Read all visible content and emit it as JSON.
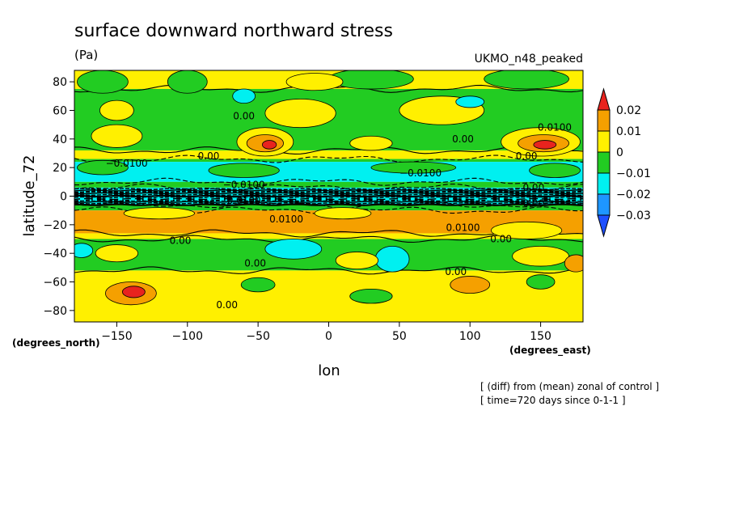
{
  "header": {
    "title": "surface downward northward stress",
    "units": "(Pa)",
    "model": "UKMO_n48_peaked"
  },
  "footer": {
    "note1": "[ (diff) from (mean) zonal of control ]",
    "note2": "[ time=720 days since 0-1-1 ]"
  },
  "chart_data": {
    "type": "heatmap",
    "xlabel": "lon",
    "ylabel": "latitude_72",
    "x_units": "(degrees_east)",
    "y_units": "(degrees_north)",
    "xlim": [
      -180,
      180
    ],
    "ylim": [
      -88,
      88
    ],
    "x_ticks": [
      -150,
      -100,
      -50,
      0,
      50,
      100,
      150
    ],
    "y_ticks": [
      80,
      60,
      40,
      20,
      0,
      -20,
      -40,
      -60,
      -80
    ],
    "colorbar": {
      "labels": [
        "0.02",
        "0.01",
        "0",
        "−0.01",
        "−0.02",
        "−0.03"
      ],
      "bands": [
        {
          "from": 0.02,
          "to": 0.03,
          "color": "#e8231e"
        },
        {
          "from": 0.01,
          "to": 0.02,
          "color": "#f5a000"
        },
        {
          "from": 0.0,
          "to": 0.01,
          "color": "#fff000"
        },
        {
          "from": -0.01,
          "to": 0.0,
          "color": "#22cc22"
        },
        {
          "from": -0.02,
          "to": -0.01,
          "color": "#00f0f0"
        },
        {
          "from": -0.03,
          "to": -0.02,
          "color": "#1e96ff"
        },
        {
          "from": -0.04,
          "to": -0.03,
          "color": "#1e50ff"
        }
      ]
    },
    "zonal_bands": [
      {
        "lat": [
          75,
          88
        ],
        "color": "#fff000"
      },
      {
        "lat": [
          32,
          75
        ],
        "color": "#22cc22"
      },
      {
        "lat": [
          26,
          32
        ],
        "color": "#fff000"
      },
      {
        "lat": [
          24,
          26
        ],
        "color": "#22cc22"
      },
      {
        "lat": [
          10,
          24
        ],
        "color": "#00f0f0"
      },
      {
        "lat": [
          6,
          10
        ],
        "color": "#22cc22"
      },
      {
        "lat": [
          -6,
          6
        ],
        "color": "#00f0f0"
      },
      {
        "lat": [
          -10,
          -6
        ],
        "color": "#22cc22"
      },
      {
        "lat": [
          -26,
          -10
        ],
        "color": "#f5a000"
      },
      {
        "lat": [
          -30,
          -26
        ],
        "color": "#fff000"
      },
      {
        "lat": [
          -52,
          -30
        ],
        "color": "#22cc22"
      },
      {
        "lat": [
          -88,
          -52
        ],
        "color": "#fff000"
      }
    ],
    "blobs": [
      {
        "lon": -160,
        "lat": 80,
        "rlon": 18,
        "rlat": 8,
        "color": "#22cc22"
      },
      {
        "lon": -100,
        "lat": 80,
        "rlon": 14,
        "rlat": 8,
        "color": "#22cc22"
      },
      {
        "lon": 30,
        "lat": 82,
        "rlon": 30,
        "rlat": 7,
        "color": "#22cc22"
      },
      {
        "lon": 140,
        "lat": 82,
        "rlon": 30,
        "rlat": 7,
        "color": "#22cc22"
      },
      {
        "lon": -10,
        "lat": 80,
        "rlon": 20,
        "rlat": 6,
        "color": "#fff000"
      },
      {
        "lon": -20,
        "lat": 58,
        "rlon": 25,
        "rlat": 10,
        "color": "#fff000"
      },
      {
        "lon": 80,
        "lat": 60,
        "rlon": 30,
        "rlat": 10,
        "color": "#fff000"
      },
      {
        "lon": -150,
        "lat": 60,
        "rlon": 12,
        "rlat": 7,
        "color": "#fff000"
      },
      {
        "lon": -150,
        "lat": 42,
        "rlon": 18,
        "rlat": 8,
        "color": "#fff000"
      },
      {
        "lon": -45,
        "lat": 38,
        "rlon": 20,
        "rlat": 10,
        "color": "#fff000"
      },
      {
        "lon": -45,
        "lat": 37,
        "rlon": 13,
        "rlat": 6,
        "color": "#f5a000"
      },
      {
        "lon": -42,
        "lat": 36,
        "rlon": 5,
        "rlat": 3,
        "color": "#e8231e"
      },
      {
        "lon": 30,
        "lat": 37,
        "rlon": 15,
        "rlat": 5,
        "color": "#fff000"
      },
      {
        "lon": 150,
        "lat": 38,
        "rlon": 28,
        "rlat": 10,
        "color": "#fff000"
      },
      {
        "lon": 152,
        "lat": 37,
        "rlon": 18,
        "rlat": 6,
        "color": "#f5a000"
      },
      {
        "lon": 153,
        "lat": 36,
        "rlon": 8,
        "rlat": 3,
        "color": "#e8231e"
      },
      {
        "lon": -60,
        "lat": 70,
        "rlon": 8,
        "rlat": 5,
        "color": "#00f0f0"
      },
      {
        "lon": 100,
        "lat": 66,
        "rlon": 10,
        "rlat": 4,
        "color": "#00f0f0"
      },
      {
        "lon": -160,
        "lat": 20,
        "rlon": 18,
        "rlat": 5,
        "color": "#22cc22"
      },
      {
        "lon": -60,
        "lat": 18,
        "rlon": 25,
        "rlat": 5,
        "color": "#22cc22"
      },
      {
        "lon": 60,
        "lat": 20,
        "rlon": 30,
        "rlat": 4,
        "color": "#22cc22"
      },
      {
        "lon": 160,
        "lat": 18,
        "rlon": 18,
        "rlat": 5,
        "color": "#22cc22"
      },
      {
        "lon": -120,
        "lat": -12,
        "rlon": 25,
        "rlat": 4,
        "color": "#fff000"
      },
      {
        "lon": 10,
        "lat": -12,
        "rlon": 20,
        "rlat": 4,
        "color": "#fff000"
      },
      {
        "lon": 140,
        "lat": -24,
        "rlon": 25,
        "rlat": 6,
        "color": "#fff000"
      },
      {
        "lon": -25,
        "lat": -37,
        "rlon": 20,
        "rlat": 7,
        "color": "#00f0f0"
      },
      {
        "lon": 45,
        "lat": -44,
        "rlon": 12,
        "rlat": 9,
        "color": "#00f0f0"
      },
      {
        "lon": -175,
        "lat": -38,
        "rlon": 8,
        "rlat": 5,
        "color": "#00f0f0"
      },
      {
        "lon": -150,
        "lat": -40,
        "rlon": 15,
        "rlat": 6,
        "color": "#fff000"
      },
      {
        "lon": 20,
        "lat": -45,
        "rlon": 15,
        "rlat": 6,
        "color": "#fff000"
      },
      {
        "lon": 150,
        "lat": -42,
        "rlon": 20,
        "rlat": 7,
        "color": "#fff000"
      },
      {
        "lon": -140,
        "lat": -68,
        "rlon": 18,
        "rlat": 8,
        "color": "#f5a000"
      },
      {
        "lon": -138,
        "lat": -67,
        "rlon": 8,
        "rlat": 4,
        "color": "#e8231e"
      },
      {
        "lon": 100,
        "lat": -62,
        "rlon": 14,
        "rlat": 6,
        "color": "#f5a000"
      },
      {
        "lon": 175,
        "lat": -47,
        "rlon": 8,
        "rlat": 6,
        "color": "#f5a000"
      },
      {
        "lon": -50,
        "lat": -62,
        "rlon": 12,
        "rlat": 5,
        "color": "#22cc22"
      },
      {
        "lon": 30,
        "lat": -70,
        "rlon": 15,
        "rlat": 5,
        "color": "#22cc22"
      },
      {
        "lon": 150,
        "lat": -60,
        "rlon": 10,
        "rlat": 5,
        "color": "#22cc22"
      }
    ],
    "contour_labels": [
      {
        "text": "0.00",
        "lon": -60,
        "lat": 56
      },
      {
        "text": "0.00",
        "lon": 95,
        "lat": 40
      },
      {
        "text": "0.0100",
        "lon": 160,
        "lat": 48
      },
      {
        "text": "0.00",
        "lon": -85,
        "lat": 28
      },
      {
        "text": "0.00",
        "lon": 140,
        "lat": 28
      },
      {
        "text": "−0.0100",
        "lon": -143,
        "lat": 23
      },
      {
        "text": "−0.0100",
        "lon": 65,
        "lat": 16
      },
      {
        "text": "−0.0100",
        "lon": -60,
        "lat": 8
      },
      {
        "text": "0.00",
        "lon": 145,
        "lat": 6
      },
      {
        "text": "0.0100",
        "lon": -60,
        "lat": -3
      },
      {
        "text": "0.00",
        "lon": 145,
        "lat": -5
      },
      {
        "text": "0.0100",
        "lon": -30,
        "lat": -16
      },
      {
        "text": "0.0100",
        "lon": 95,
        "lat": -22
      },
      {
        "text": "0.00",
        "lon": -105,
        "lat": -31
      },
      {
        "text": "0.00",
        "lon": 122,
        "lat": -30
      },
      {
        "text": "0.00",
        "lon": -52,
        "lat": -47
      },
      {
        "text": "0.00",
        "lon": 90,
        "lat": -53
      },
      {
        "text": "0.00",
        "lon": -72,
        "lat": -76
      }
    ]
  }
}
